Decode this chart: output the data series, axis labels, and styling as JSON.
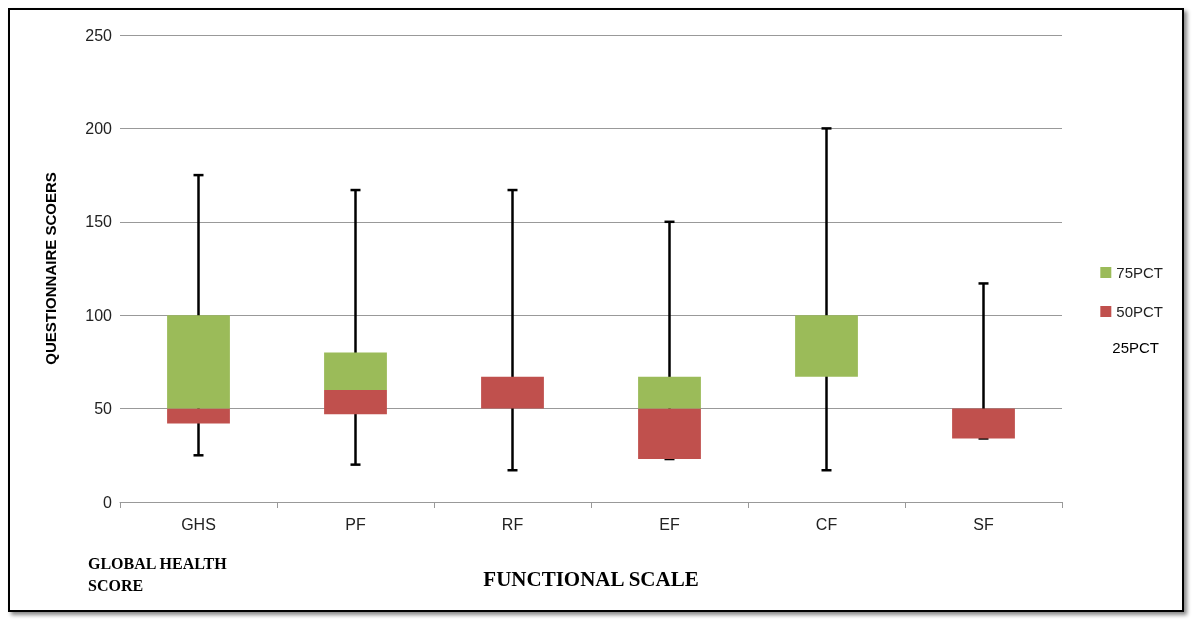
{
  "chart_data": {
    "type": "bar",
    "xlabel": "FUNCTIONAL SCALE",
    "ylabel": "QUESTIONNAIRE SCOERS",
    "annotations": [
      "GLOBAL HEALTH SCORE",
      "25PCT"
    ],
    "categories": [
      "GHS",
      "PF",
      "RF",
      "EF",
      "CF",
      "SF"
    ],
    "series": [
      {
        "name": "50PCT",
        "color": "#c0504d",
        "base": [
          42,
          47,
          50,
          23,
          null,
          34
        ],
        "values": [
          8,
          13,
          17,
          27,
          null,
          16
        ],
        "errors": [
          null,
          null,
          [
            17,
            167
          ],
          null,
          null,
          [
            34,
            117
          ]
        ]
      },
      {
        "name": "75PCT",
        "color": "#9bbb59",
        "base": [
          50,
          60,
          null,
          50,
          67,
          null
        ],
        "values": [
          50,
          20,
          null,
          17,
          33,
          null
        ],
        "errors": [
          [
            25,
            175
          ],
          [
            20,
            167
          ],
          null,
          [
            23,
            150
          ],
          [
            17,
            200
          ],
          null
        ]
      }
    ],
    "ylim": [
      0,
      250
    ],
    "yticks": [
      0,
      50,
      100,
      150,
      200,
      250
    ],
    "grid": "y",
    "legend": "right"
  }
}
